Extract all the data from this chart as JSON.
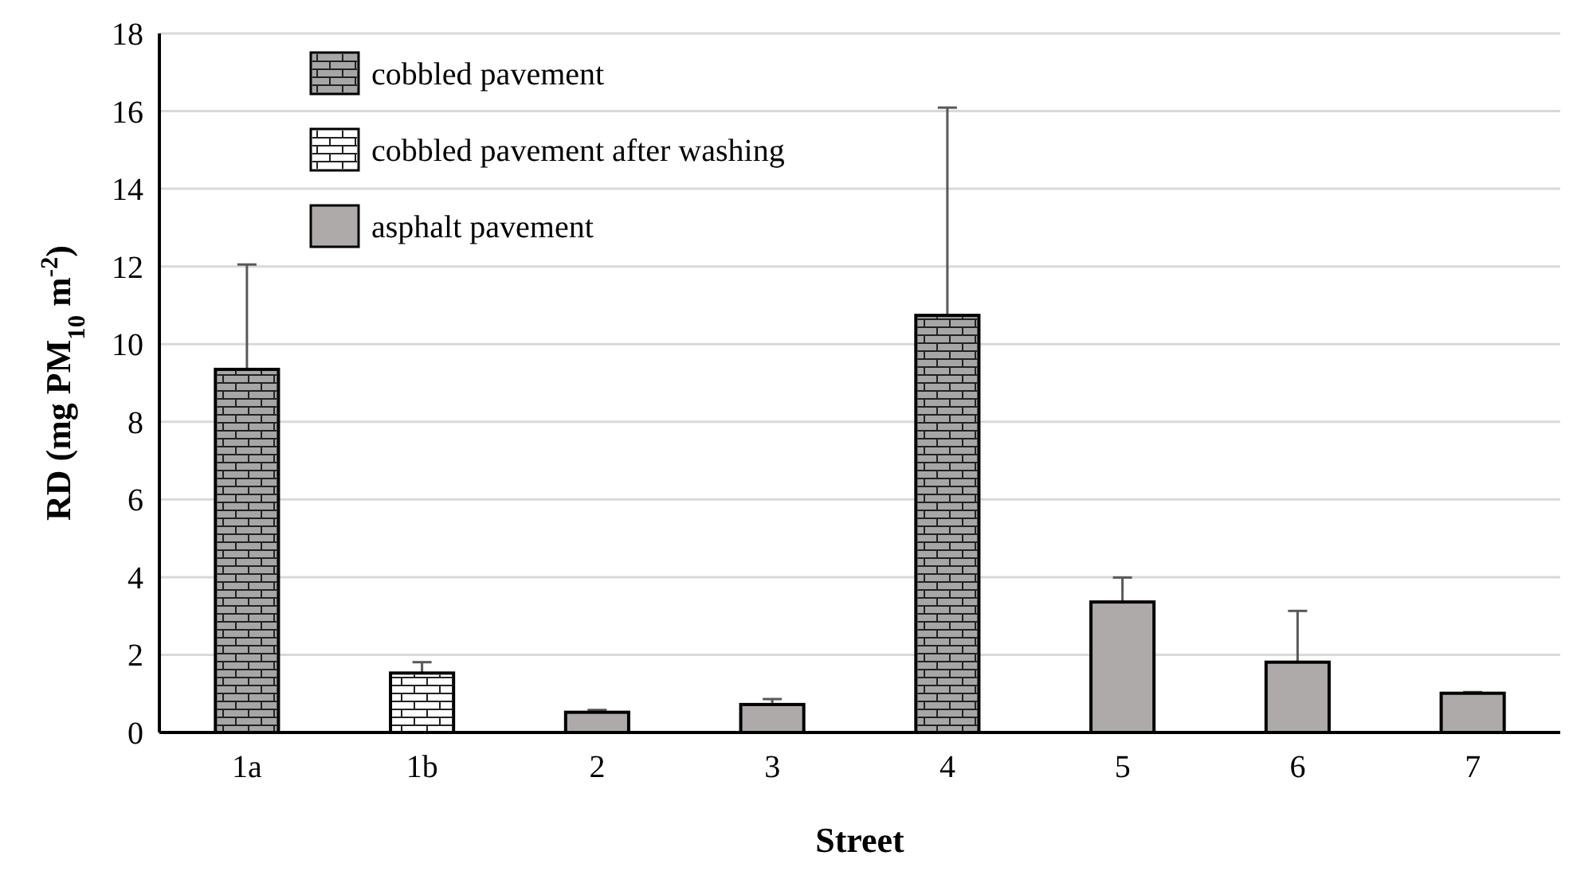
{
  "chart_data": {
    "type": "bar",
    "xlabel": "Street",
    "ylabel": "RD (mg PM$_{10}$ m$^{-2}$)",
    "categories": [
      "1a",
      "1b",
      "2",
      "3",
      "4",
      "5",
      "6",
      "7"
    ],
    "stacked": true,
    "series": [
      {
        "name": "cobbled pavement",
        "color": "#a6a6a6",
        "values": [
          9.35,
          null,
          null,
          null,
          10.74,
          null,
          null,
          null
        ],
        "errors": [
          2.7,
          null,
          null,
          null,
          5.35,
          null,
          null,
          null
        ]
      },
      {
        "name": "cobbled pavement after washing",
        "color": "#ffffff",
        "values": [
          null,
          1.53,
          null,
          null,
          null,
          null,
          null,
          null
        ],
        "errors": [
          null,
          0.28,
          null,
          null,
          null,
          null,
          null,
          null
        ]
      },
      {
        "name": "asphalt pavement",
        "color": "#aeaaaa",
        "values": [
          null,
          null,
          0.52,
          0.72,
          null,
          3.36,
          1.81,
          1.01
        ],
        "errors": [
          null,
          null,
          0.06,
          0.14,
          null,
          0.63,
          1.32,
          0.03
        ]
      }
    ],
    "ylim": [
      0,
      18
    ],
    "yticks": [
      0,
      2,
      4,
      6,
      8,
      10,
      12,
      14,
      16,
      18
    ],
    "grid": "y",
    "legend": "top left"
  }
}
